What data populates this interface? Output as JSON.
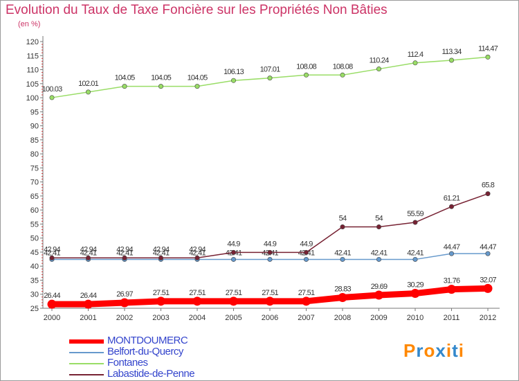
{
  "header": {
    "title": "Evolution du Taux de Taxe Foncière sur les Propriétés Non Bâties",
    "unit": "(en %)"
  },
  "chart_data": {
    "type": "line",
    "title": "Evolution du Taux de Taxe Foncière sur les Propriétés Non Bâties",
    "ylabel": "(en %)",
    "xlabel": "",
    "ylim": [
      25,
      120
    ],
    "ytick_step": 5,
    "grid": false,
    "x": [
      "2000",
      "2001",
      "2002",
      "2003",
      "2004",
      "2005",
      "2006",
      "2007",
      "2008",
      "2009",
      "2010",
      "2011",
      "2012"
    ],
    "series": [
      {
        "name": "MONTDOUMERC",
        "color": "#ff0000",
        "values": [
          26.44,
          26.44,
          26.97,
          27.51,
          27.51,
          27.51,
          27.51,
          27.51,
          28.83,
          29.69,
          30.29,
          31.76,
          32.07
        ],
        "labels": [
          "26.44",
          "26.44",
          "26.97",
          "27.51",
          "27.51",
          "27.51",
          "27.51",
          "27.51",
          "28.83",
          "29.69",
          "30.29",
          "31.76",
          "32.07"
        ]
      },
      {
        "name": "Belfort-du-Quercy",
        "color": "#6699cc",
        "values": [
          42.41,
          42.41,
          42.41,
          42.41,
          42.41,
          42.41,
          42.41,
          42.41,
          42.41,
          42.41,
          42.41,
          44.47,
          44.47
        ],
        "labels": [
          "42.41",
          "42.41",
          "42.41",
          "42.41",
          "42.41",
          "42.41",
          "42.41",
          "42.41",
          "42.41",
          "42.41",
          "42.41",
          "44.47",
          "44.47"
        ]
      },
      {
        "name": "Fontanes",
        "color": "#99dd66",
        "values": [
          100.03,
          102.01,
          104.05,
          104.05,
          104.05,
          106.13,
          107.01,
          108.08,
          108.08,
          110.24,
          112.4,
          113.34,
          114.47
        ],
        "labels": [
          "100.03",
          "102.01",
          "104.05",
          "104.05",
          "104.05",
          "106.13",
          "107.01",
          "108.08",
          "108.08",
          "110.24",
          "112.4",
          "113.34",
          "114.47"
        ]
      },
      {
        "name": "Labastide-de-Penne",
        "color": "#772233",
        "values": [
          42.94,
          42.94,
          42.94,
          42.94,
          42.94,
          44.9,
          44.9,
          44.9,
          54,
          54,
          55.59,
          61.21,
          65.8
        ],
        "labels": [
          "42.94",
          "42.94",
          "42.94",
          "42.94",
          "42.94",
          "44.9",
          "44.9",
          "44.9",
          "54",
          "54",
          "55.59",
          "61.21",
          "65.8"
        ]
      }
    ],
    "legend_position": "bottom-left"
  },
  "logo": {
    "text": "Proxiti",
    "colors": [
      "#ff8800",
      "#3388cc",
      "#ff8800",
      "#3388cc",
      "#ff8800",
      "#3388cc",
      "#ff8800"
    ]
  }
}
